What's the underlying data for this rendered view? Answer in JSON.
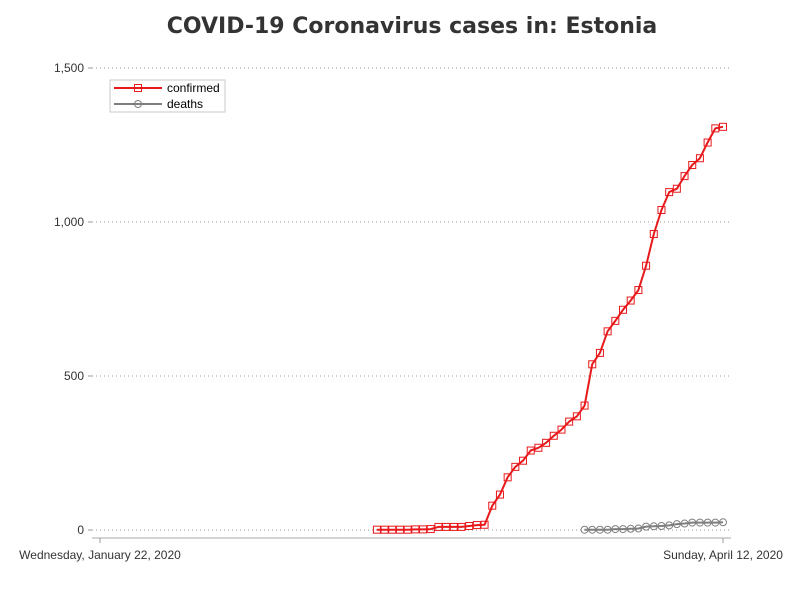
{
  "chart_data": {
    "type": "line",
    "title": "COVID-19 Coronavirus cases in: Estonia",
    "xlabel": "",
    "ylabel": "",
    "x_tick_labels": [
      "Wednesday, January 22, 2020",
      "Sunday, April 12, 2020"
    ],
    "x_range": [
      "2020-01-22",
      "2020-04-12"
    ],
    "ylim": [
      0,
      1500
    ],
    "y_ticks": [
      0,
      500,
      1000,
      1500
    ],
    "y_tick_labels": [
      "0",
      "500",
      "1,000",
      "1,500"
    ],
    "grid": "horizontal-dotted",
    "legend_position": "top-left",
    "series": [
      {
        "name": "confirmed",
        "color": "#e8191b",
        "marker": "square",
        "points": [
          [
            "2020-02-27",
            1
          ],
          [
            "2020-02-28",
            1
          ],
          [
            "2020-02-29",
            1
          ],
          [
            "2020-03-01",
            1
          ],
          [
            "2020-03-02",
            1
          ],
          [
            "2020-03-03",
            2
          ],
          [
            "2020-03-04",
            2
          ],
          [
            "2020-03-05",
            3
          ],
          [
            "2020-03-06",
            10
          ],
          [
            "2020-03-07",
            10
          ],
          [
            "2020-03-08",
            10
          ],
          [
            "2020-03-09",
            10
          ],
          [
            "2020-03-10",
            13
          ],
          [
            "2020-03-11",
            16
          ],
          [
            "2020-03-12",
            17
          ],
          [
            "2020-03-13",
            79
          ],
          [
            "2020-03-14",
            115
          ],
          [
            "2020-03-15",
            171
          ],
          [
            "2020-03-16",
            205
          ],
          [
            "2020-03-17",
            225
          ],
          [
            "2020-03-18",
            258
          ],
          [
            "2020-03-19",
            267
          ],
          [
            "2020-03-20",
            283
          ],
          [
            "2020-03-21",
            306
          ],
          [
            "2020-03-22",
            326
          ],
          [
            "2020-03-23",
            352
          ],
          [
            "2020-03-24",
            369
          ],
          [
            "2020-03-25",
            404
          ],
          [
            "2020-03-26",
            538
          ],
          [
            "2020-03-27",
            575
          ],
          [
            "2020-03-28",
            645
          ],
          [
            "2020-03-29",
            679
          ],
          [
            "2020-03-30",
            715
          ],
          [
            "2020-03-31",
            745
          ],
          [
            "2020-04-01",
            779
          ],
          [
            "2020-04-02",
            858
          ],
          [
            "2020-04-03",
            961
          ],
          [
            "2020-04-04",
            1039
          ],
          [
            "2020-04-05",
            1097
          ],
          [
            "2020-04-06",
            1108
          ],
          [
            "2020-04-07",
            1149
          ],
          [
            "2020-04-08",
            1185
          ],
          [
            "2020-04-09",
            1207
          ],
          [
            "2020-04-10",
            1258
          ],
          [
            "2020-04-11",
            1304
          ],
          [
            "2020-04-12",
            1309
          ]
        ]
      },
      {
        "name": "deaths",
        "color": "#7f7f7f",
        "marker": "circle",
        "points": [
          [
            "2020-03-25",
            1
          ],
          [
            "2020-03-26",
            1
          ],
          [
            "2020-03-27",
            1
          ],
          [
            "2020-03-28",
            1
          ],
          [
            "2020-03-29",
            3
          ],
          [
            "2020-03-30",
            3
          ],
          [
            "2020-03-31",
            4
          ],
          [
            "2020-04-01",
            5
          ],
          [
            "2020-04-02",
            11
          ],
          [
            "2020-04-03",
            12
          ],
          [
            "2020-04-04",
            13
          ],
          [
            "2020-04-05",
            15
          ],
          [
            "2020-04-06",
            19
          ],
          [
            "2020-04-07",
            21
          ],
          [
            "2020-04-08",
            24
          ],
          [
            "2020-04-09",
            24
          ],
          [
            "2020-04-10",
            24
          ],
          [
            "2020-04-11",
            24
          ],
          [
            "2020-04-12",
            25
          ]
        ]
      }
    ]
  }
}
